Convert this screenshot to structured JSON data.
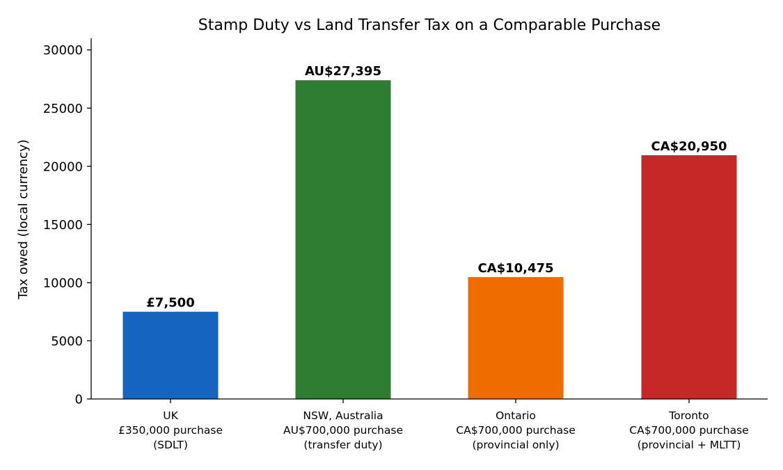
{
  "chart_data": {
    "type": "bar",
    "title": "Stamp Duty vs Land Transfer Tax on a Comparable Purchase",
    "xlabel": "",
    "ylabel": "Tax owed (local currency)",
    "ylim": [
      0,
      31000
    ],
    "yticks": [
      "0",
      "5000",
      "10000",
      "15000",
      "20000",
      "25000",
      "30000"
    ],
    "ytick_values": [
      0,
      5000,
      10000,
      15000,
      20000,
      25000,
      30000
    ],
    "grid": false,
    "categories": [
      [
        "UK",
        "£350,000 purchase",
        "(SDLT)"
      ],
      [
        "NSW, Australia",
        "AU$700,000 purchase",
        "(transfer duty)"
      ],
      [
        "Ontario",
        "CA$700,000 purchase",
        "(provincial only)"
      ],
      [
        "Toronto",
        "CA$700,000 purchase",
        "(provincial + MLTT)"
      ]
    ],
    "values": [
      7500,
      27395,
      10475,
      20950
    ],
    "data_labels": [
      "£7,500",
      "AU$27,395",
      "CA$10,475",
      "CA$20,950"
    ],
    "colors": [
      "#1565c0",
      "#2e7d32",
      "#ef6c00",
      "#c62828"
    ]
  }
}
